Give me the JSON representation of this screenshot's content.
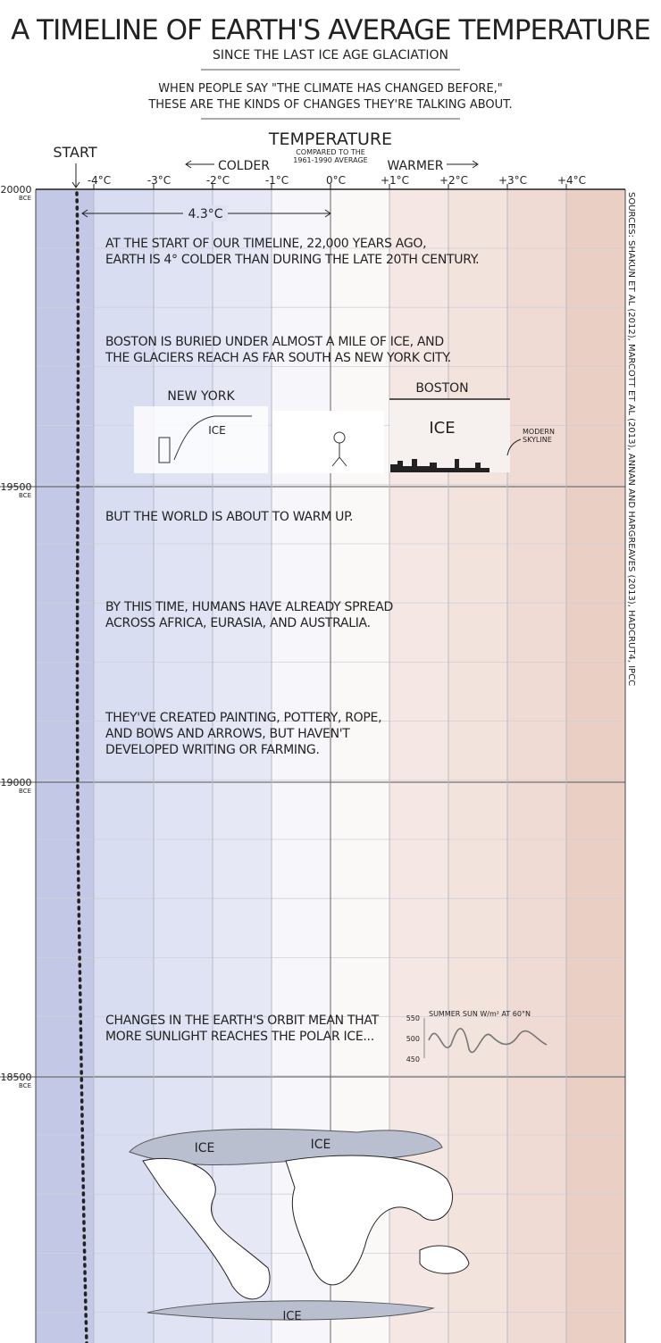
{
  "header": {
    "title": "A TIMELINE OF EARTH'S AVERAGE TEMPERATURE",
    "subtitle": "SINCE THE LAST ICE AGE GLACIATION",
    "intro": [
      "WHEN PEOPLE SAY \"THE CLIMATE HAS CHANGED BEFORE,\"",
      "THESE ARE THE KINDS OF CHANGES THEY'RE TALKING ABOUT."
    ]
  },
  "axis": {
    "title": "TEMPERATURE",
    "note": [
      "COMPARED TO THE",
      "1961-1990 AVERAGE"
    ],
    "colder": "COLDER",
    "warmer": "WARMER",
    "start": "START",
    "ticks": [
      "-4°C",
      "-3°C",
      "-2°C",
      "-1°C",
      "0°C",
      "+1°C",
      "+2°C",
      "+3°C",
      "+4°C"
    ],
    "span": "4.3°C"
  },
  "years": [
    {
      "year": "20000",
      "era": "BCE"
    },
    {
      "year": "19500",
      "era": "BCE"
    },
    {
      "year": "19000",
      "era": "BCE"
    },
    {
      "year": "18500",
      "era": "BCE"
    }
  ],
  "annotations": [
    {
      "lines": [
        "AT THE START OF OUR TIMELINE, 22,000 YEARS AGO,",
        "EARTH IS 4° COLDER THAN DURING THE LATE 20TH CENTURY."
      ]
    },
    {
      "lines": [
        "BOSTON IS BURIED UNDER ALMOST A MILE OF ICE, AND",
        "THE GLACIERS REACH AS FAR SOUTH AS NEW YORK CITY."
      ]
    },
    {
      "lines": [
        "BUT THE WORLD IS ABOUT TO WARM UP."
      ]
    },
    {
      "lines": [
        "BY THIS TIME, HUMANS HAVE ALREADY SPREAD",
        "ACROSS AFRICA, EURASIA, AND AUSTRALIA."
      ]
    },
    {
      "lines": [
        "THEY'VE CREATED PAINTING, POTTERY, ROPE,",
        "AND BOWS AND ARROWS, BUT HAVEN'T",
        "DEVELOPED WRITING OR FARMING."
      ]
    },
    {
      "lines": [
        "CHANGES IN THE EARTH'S ORBIT MEAN THAT",
        "MORE SUNLIGHT REACHES THE POLAR ICE..."
      ]
    }
  ],
  "illustrations": {
    "new_york": "NEW YORK",
    "ny_ice": "ICE",
    "boston": "BOSTON",
    "boston_ice": "ICE",
    "skyline": [
      "MODERN",
      "SKYLINE"
    ],
    "sun_graph": {
      "title": "SUMMER SUN W/m² AT 60°N",
      "ticks": [
        "550",
        "500",
        "450"
      ]
    },
    "map_ice": [
      "ICE",
      "ICE",
      "ICE"
    ]
  },
  "sources": "SOURCES: SHAKUN ET AL (2012), MARCOTT ET AL (2013), ANNAN AND HARGREAVES (2013), HADCRUT4, IPCC"
}
